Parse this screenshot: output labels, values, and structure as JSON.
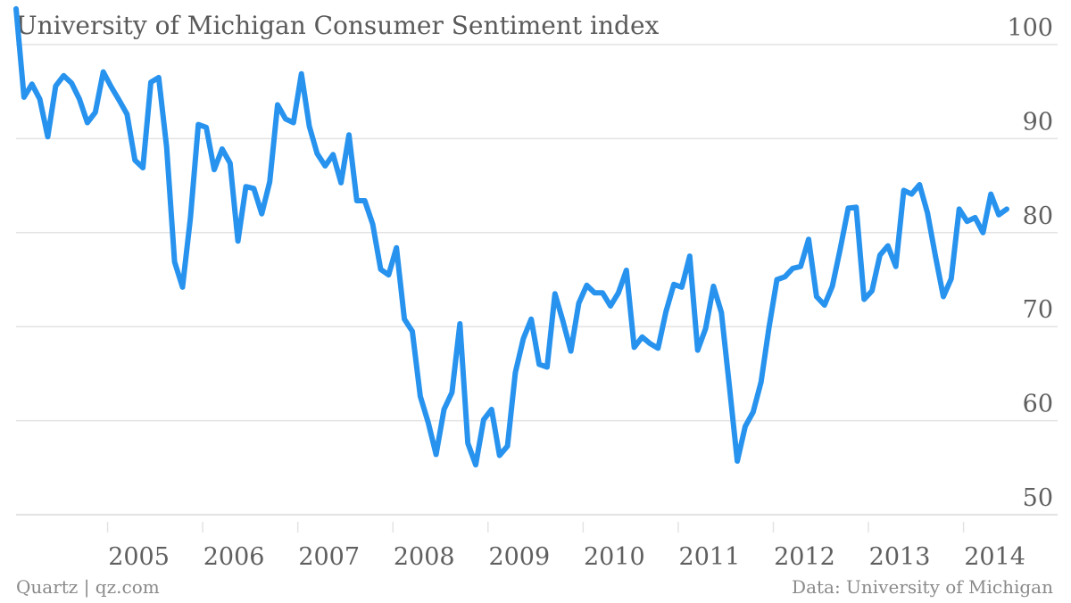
{
  "title": "University of Michigan Consumer Sentiment index",
  "footer_left": "Quartz | qz.com",
  "footer_right": "Data: University of Michigan",
  "colors": {
    "line": "#2793ee",
    "grid": "#e3e3e3",
    "text": "#5f5f5f",
    "footer": "#8a8a8a"
  },
  "chart_data": {
    "type": "line",
    "title": "University of Michigan Consumer Sentiment index",
    "xlabel": "",
    "ylabel": "",
    "ylim": [
      50,
      100
    ],
    "yticks": [
      100,
      90,
      80,
      70,
      60,
      50
    ],
    "xticks": [
      "2005",
      "2006",
      "2007",
      "2008",
      "2009",
      "2010",
      "2011",
      "2012",
      "2013",
      "2014"
    ],
    "y_axis_side": "right",
    "grid": true,
    "x_start": "2004-01",
    "x": [
      "2004-01",
      "2004-02",
      "2004-03",
      "2004-04",
      "2004-05",
      "2004-06",
      "2004-07",
      "2004-08",
      "2004-09",
      "2004-10",
      "2004-11",
      "2004-12",
      "2005-01",
      "2005-02",
      "2005-03",
      "2005-04",
      "2005-05",
      "2005-06",
      "2005-07",
      "2005-08",
      "2005-09",
      "2005-10",
      "2005-11",
      "2005-12",
      "2006-01",
      "2006-02",
      "2006-03",
      "2006-04",
      "2006-05",
      "2006-06",
      "2006-07",
      "2006-08",
      "2006-09",
      "2006-10",
      "2006-11",
      "2006-12",
      "2007-01",
      "2007-02",
      "2007-03",
      "2007-04",
      "2007-05",
      "2007-06",
      "2007-07",
      "2007-08",
      "2007-09",
      "2007-10",
      "2007-11",
      "2007-12",
      "2008-01",
      "2008-02",
      "2008-03",
      "2008-04",
      "2008-05",
      "2008-06",
      "2008-07",
      "2008-08",
      "2008-09",
      "2008-10",
      "2008-11",
      "2008-12",
      "2009-01",
      "2009-02",
      "2009-03",
      "2009-04",
      "2009-05",
      "2009-06",
      "2009-07",
      "2009-08",
      "2009-09",
      "2009-10",
      "2009-11",
      "2009-12",
      "2010-01",
      "2010-02",
      "2010-03",
      "2010-04",
      "2010-05",
      "2010-06",
      "2010-07",
      "2010-08",
      "2010-09",
      "2010-10",
      "2010-11",
      "2010-12",
      "2011-01",
      "2011-02",
      "2011-03",
      "2011-04",
      "2011-05",
      "2011-06",
      "2011-07",
      "2011-08",
      "2011-09",
      "2011-10",
      "2011-11",
      "2011-12",
      "2012-01",
      "2012-02",
      "2012-03",
      "2012-04",
      "2012-05",
      "2012-06",
      "2012-07",
      "2012-08",
      "2012-09",
      "2012-10",
      "2012-11",
      "2012-12",
      "2013-01",
      "2013-02",
      "2013-03",
      "2013-04",
      "2013-05",
      "2013-06",
      "2013-07",
      "2013-08",
      "2013-09",
      "2013-10",
      "2013-11",
      "2013-12",
      "2014-01",
      "2014-02",
      "2014-03",
      "2014-04",
      "2014-05",
      "2014-06"
    ],
    "series": [
      {
        "name": "",
        "values": [
          103.8,
          94.4,
          95.8,
          94.2,
          90.2,
          95.6,
          96.7,
          95.9,
          94.2,
          91.7,
          92.8,
          97.1,
          95.5,
          94.1,
          92.6,
          87.7,
          86.9,
          96.0,
          96.5,
          89.1,
          76.9,
          74.2,
          81.6,
          91.5,
          91.2,
          86.7,
          88.9,
          87.4,
          79.1,
          84.9,
          84.7,
          82.0,
          85.4,
          93.6,
          92.1,
          91.7,
          96.9,
          91.3,
          88.4,
          87.1,
          88.3,
          85.3,
          90.4,
          83.4,
          83.4,
          80.9,
          76.1,
          75.5,
          78.4,
          70.8,
          69.5,
          62.6,
          59.8,
          56.4,
          61.2,
          63.0,
          70.3,
          57.6,
          55.3,
          60.1,
          61.2,
          56.3,
          57.3,
          65.1,
          68.7,
          70.8,
          66.0,
          65.7,
          73.5,
          70.6,
          67.4,
          72.5,
          74.4,
          73.6,
          73.6,
          72.2,
          73.6,
          76.0,
          67.8,
          68.9,
          68.2,
          67.7,
          71.6,
          74.5,
          74.2,
          77.5,
          67.5,
          69.8,
          74.3,
          71.5,
          63.7,
          55.7,
          59.4,
          60.9,
          64.1,
          69.9,
          75.0,
          75.3,
          76.2,
          76.4,
          79.3,
          73.2,
          72.3,
          74.3,
          78.3,
          82.6,
          82.7,
          72.9,
          73.8,
          77.6,
          78.6,
          76.4,
          84.5,
          84.1,
          85.1,
          82.1,
          77.5,
          73.2,
          75.1,
          82.5,
          81.2,
          81.6,
          80.0,
          84.1,
          81.9,
          82.5
        ]
      }
    ]
  }
}
